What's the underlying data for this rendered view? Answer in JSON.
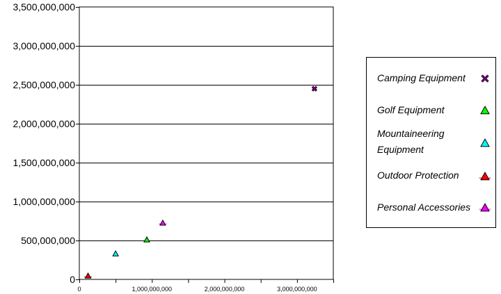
{
  "chart_data": {
    "type": "scatter",
    "title": "",
    "xlabel": "",
    "ylabel": "",
    "xlim": [
      0,
      3500000000
    ],
    "ylim": [
      0,
      3500000000
    ],
    "x_ticks": [
      0,
      500000000,
      1000000000,
      1500000000,
      2000000000,
      2500000000,
      3000000000,
      3500000000
    ],
    "x_tick_labels": [
      "0",
      "",
      "1,000,000,000",
      "",
      "2,000,000,000",
      "",
      "3,000,000,000",
      ""
    ],
    "y_ticks": [
      0,
      500000000,
      1000000000,
      1500000000,
      2000000000,
      2500000000,
      3000000000,
      3500000000
    ],
    "y_tick_labels": [
      "0",
      "500,000,000",
      "1,000,000,000",
      "1,500,000,000",
      "2,000,000,000",
      "2,500,000,000",
      "3,000,000,000",
      "3,500,000,000"
    ],
    "grid": "horizontal",
    "legend_position": "right",
    "series": [
      {
        "name": "Camping Equipment",
        "marker": "x",
        "color": "#800080",
        "points": [
          {
            "x": 3240000000,
            "y": 2450000000
          }
        ]
      },
      {
        "name": "Golf Equipment",
        "marker": "triangle",
        "color": "#00ff00",
        "points": [
          {
            "x": 930000000,
            "y": 510000000
          }
        ]
      },
      {
        "name": "Mountaineering Equipment",
        "label_lines": [
          "Mountaineering",
          "Equipment"
        ],
        "marker": "triangle",
        "color": "#00ffff",
        "points": [
          {
            "x": 500000000,
            "y": 330000000
          }
        ]
      },
      {
        "name": "Outdoor Protection",
        "marker": "triangle-line",
        "color": "#ff0000",
        "points": [
          {
            "x": 120000000,
            "y": 45000000
          }
        ]
      },
      {
        "name": "Personal Accessories",
        "marker": "triangle-line",
        "color": "#ff00ff",
        "points": [
          {
            "x": 1150000000,
            "y": 725000000
          }
        ]
      }
    ]
  }
}
